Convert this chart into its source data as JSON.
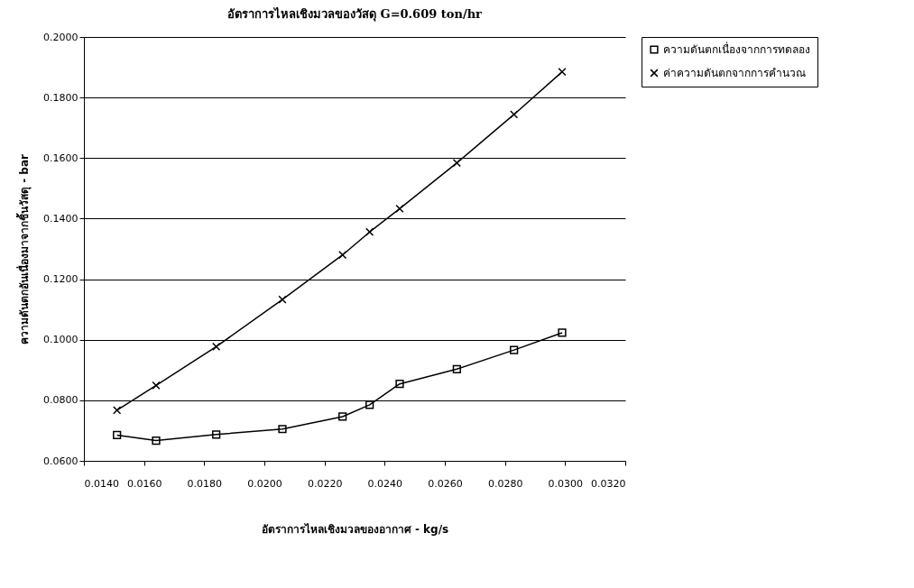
{
  "chart_data": {
    "type": "line",
    "title": "อัตราการไหลเชิงมวลของวัสดุ G=0.609 ton/hr",
    "xlabel": "อัตราการไหลเชิงมวลของอากาศ - kg/s",
    "ylabel": "ความดันตกอันเนื่องมาจากชิ้นวัสดุ - bar",
    "x": [
      0.0151,
      0.0164,
      0.0184,
      0.0206,
      0.0226,
      0.0235,
      0.0245,
      0.0264,
      0.0283,
      0.0299
    ],
    "series": [
      {
        "name": "ความดันตกเนื่องจากการทดลอง",
        "color": "#000000",
        "marker": "square",
        "values": [
          0.0685,
          0.0667,
          0.0687,
          0.0705,
          0.0746,
          0.0785,
          0.0854,
          0.0903,
          0.0966,
          0.1023
        ]
      },
      {
        "name": "ค่าความดันตกจากการคำนวณ",
        "color": "#000000",
        "marker": "cross",
        "values": [
          0.0767,
          0.0849,
          0.0977,
          0.1133,
          0.128,
          0.1356,
          0.1433,
          0.1584,
          0.1744,
          0.1885
        ]
      }
    ],
    "xlim": [
      0.014,
      0.032
    ],
    "xticks": [
      {
        "value": 0.014,
        "label": "0.0140"
      },
      {
        "value": 0.016,
        "label": "0.0160"
      },
      {
        "value": 0.018,
        "label": "0.0180"
      },
      {
        "value": 0.02,
        "label": "0.0200"
      },
      {
        "value": 0.022,
        "label": "0.0220"
      },
      {
        "value": 0.024,
        "label": "0.0240"
      },
      {
        "value": 0.026,
        "label": "0.0260"
      },
      {
        "value": 0.028,
        "label": "0.0280"
      },
      {
        "value": 0.03,
        "label": "0.0300"
      },
      {
        "value": 0.032,
        "label": "0.0320"
      }
    ],
    "ylim": [
      0.06,
      0.2
    ],
    "yticks": [
      {
        "value": 0.06,
        "label": "0.0600"
      },
      {
        "value": 0.08,
        "label": "0.0800"
      },
      {
        "value": 0.1,
        "label": "0.1000"
      },
      {
        "value": 0.12,
        "label": "0.1200"
      },
      {
        "value": 0.14,
        "label": "0.1400"
      },
      {
        "value": 0.16,
        "label": "0.1600"
      },
      {
        "value": 0.18,
        "label": "0.1800"
      },
      {
        "value": 0.2,
        "label": "0.2000"
      }
    ],
    "grid": "y",
    "legend": "right",
    "line_style": "solid"
  }
}
